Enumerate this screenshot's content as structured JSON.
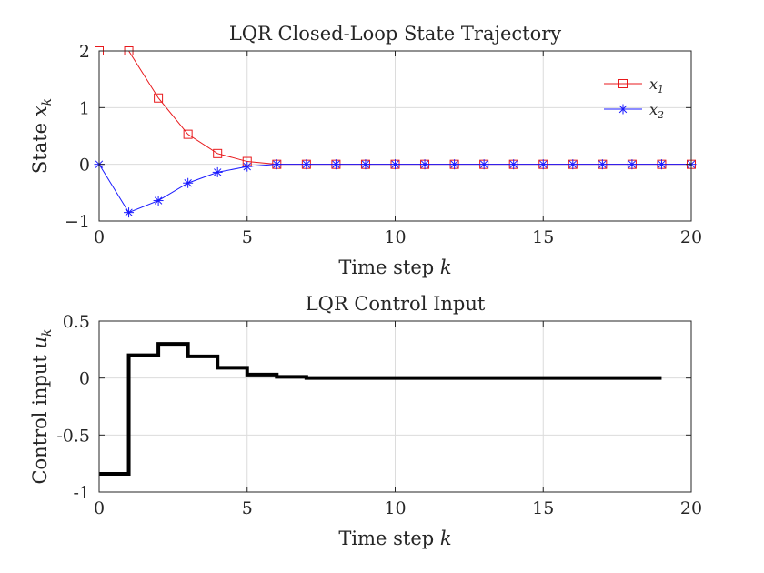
{
  "chart_data": [
    {
      "type": "line",
      "title": "LQR Closed-Loop State Trajectory",
      "xlabel": "Time step",
      "xlabel_var": "k",
      "ylabel": "State",
      "ylabel_var": "x",
      "ylabel_sub": "k",
      "xlim": [
        0,
        20
      ],
      "ylim": [
        -1,
        2
      ],
      "xticks": [
        0,
        5,
        10,
        15,
        20
      ],
      "yticks": [
        -1,
        0,
        1,
        2
      ],
      "xtick_labels": [
        "0",
        "5",
        "10",
        "15",
        "20"
      ],
      "ytick_labels": [
        "−1",
        "0",
        "1",
        "2"
      ],
      "grid": true,
      "legend": "top-right",
      "series": [
        {
          "name": "x",
          "name_sub": "1",
          "color": "#e8191c",
          "marker": "square",
          "x": [
            0,
            1,
            2,
            3,
            4,
            5,
            6,
            7,
            8,
            9,
            10,
            11,
            12,
            13,
            14,
            15,
            16,
            17,
            18,
            19,
            20
          ],
          "values": [
            2.0,
            2.0,
            1.17,
            0.53,
            0.19,
            0.05,
            0.0,
            0.0,
            0.0,
            0.0,
            0.0,
            0.0,
            0.0,
            0.0,
            0.0,
            0.0,
            0.0,
            0.0,
            0.0,
            0.0,
            0.0
          ]
        },
        {
          "name": "x",
          "name_sub": "2",
          "color": "#1a1aff",
          "marker": "star",
          "x": [
            0,
            1,
            2,
            3,
            4,
            5,
            6,
            7,
            8,
            9,
            10,
            11,
            12,
            13,
            14,
            15,
            16,
            17,
            18,
            19,
            20
          ],
          "values": [
            0.0,
            -0.85,
            -0.64,
            -0.33,
            -0.14,
            -0.04,
            0.0,
            0.0,
            0.0,
            0.0,
            0.0,
            0.0,
            0.0,
            0.0,
            0.0,
            0.0,
            0.0,
            0.0,
            0.0,
            0.0,
            0.0
          ]
        }
      ]
    },
    {
      "type": "line",
      "subtype": "stairs",
      "title": "LQR Control Input",
      "xlabel": "Time step",
      "xlabel_var": "k",
      "ylabel": "Control input",
      "ylabel_var": "u",
      "ylabel_sub": "k",
      "xlim": [
        0,
        20
      ],
      "ylim": [
        -1,
        0.5
      ],
      "xticks": [
        0,
        5,
        10,
        15,
        20
      ],
      "yticks": [
        -1,
        -0.5,
        0,
        0.5
      ],
      "xtick_labels": [
        "0",
        "5",
        "10",
        "15",
        "20"
      ],
      "ytick_labels": [
        "-1",
        "-0.5",
        "0",
        "0.5"
      ],
      "grid": true,
      "series": [
        {
          "color": "#000000",
          "x": [
            0,
            1,
            2,
            3,
            4,
            5,
            6,
            7,
            8,
            9,
            10,
            11,
            12,
            13,
            14,
            15,
            16,
            17,
            18,
            19
          ],
          "values": [
            -0.84,
            0.2,
            0.3,
            0.19,
            0.09,
            0.03,
            0.01,
            0.0,
            0.0,
            0.0,
            0.0,
            0.0,
            0.0,
            0.0,
            0.0,
            0.0,
            0.0,
            0.0,
            0.0,
            0.0
          ]
        }
      ]
    }
  ]
}
